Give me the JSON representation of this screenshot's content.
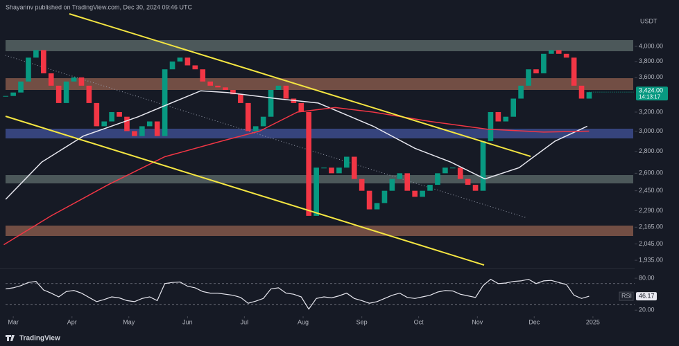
{
  "chart_data": {
    "type": "candlestick",
    "title": "Shayannv published on TradingView.com, Dec 30, 2024 09:46 UTC",
    "currency": "USDT",
    "brand": "TradingView",
    "x": [
      -4,
      0,
      4,
      8,
      12,
      16,
      20,
      24,
      28,
      32,
      36,
      40,
      44,
      48,
      52,
      56,
      60,
      64,
      68,
      72,
      76,
      80,
      84,
      88,
      92,
      96,
      100,
      104,
      108,
      112,
      116,
      120,
      124,
      128,
      132,
      136,
      140,
      144,
      148,
      152,
      156,
      160,
      164,
      168,
      172,
      176,
      180,
      184,
      188,
      192,
      196,
      200,
      204,
      208,
      212,
      216,
      220,
      224,
      228,
      232,
      236,
      240,
      244,
      248,
      252,
      256,
      260,
      264,
      268,
      272,
      276,
      280,
      284,
      288,
      292,
      296,
      300,
      304
    ],
    "values": [
      3380,
      3420,
      3550,
      3850,
      3950,
      3650,
      3500,
      3300,
      3550,
      3600,
      3500,
      3300,
      3050,
      3100,
      3200,
      3150,
      3000,
      2950,
      3050,
      3100,
      2950,
      3700,
      3800,
      3850,
      3750,
      3700,
      3550,
      3500,
      3480,
      3450,
      3400,
      3300,
      3000,
      3050,
      3150,
      3450,
      3500,
      3350,
      3300,
      3200,
      2250,
      2650,
      2650,
      2600,
      2650,
      2750,
      2550,
      2450,
      2300,
      2350,
      2450,
      2550,
      2600,
      2450,
      2400,
      2450,
      2500,
      2600,
      2650,
      2650,
      2550,
      2500,
      2450,
      2900,
      3200,
      3100,
      3150,
      3350,
      3500,
      3700,
      3650,
      3900,
      3950,
      3900,
      3850,
      3500,
      3350,
      3424
    ],
    "up_color": "#089981",
    "down_color": "#f23645",
    "last_price_label": "3,424.00",
    "timer": "14:13:17",
    "log": true,
    "ylim": [
      1895,
      4467
    ],
    "yticks": [
      {
        "value": 4000,
        "label": "4,000.00"
      },
      {
        "value": 3800,
        "label": "3,800.00"
      },
      {
        "value": 3600,
        "label": "3,600.00"
      },
      {
        "value": 3200,
        "label": "3,200.00"
      },
      {
        "value": 3000,
        "label": "3,000.00"
      },
      {
        "value": 2800,
        "label": "2,800.00"
      },
      {
        "value": 2600,
        "label": "2,600.00"
      },
      {
        "value": 2450,
        "label": "2,450.00"
      },
      {
        "value": 2290,
        "label": "2,290.00"
      },
      {
        "value": 2165,
        "label": "2,165.00"
      },
      {
        "value": 2045,
        "label": "2,045.00"
      },
      {
        "value": 1935,
        "label": "1,935.00"
      }
    ],
    "xlim": [
      -7,
      328
    ],
    "xticks": [
      {
        "value": 0,
        "label": "Mar"
      },
      {
        "value": 31,
        "label": "Apr"
      },
      {
        "value": 61,
        "label": "May"
      },
      {
        "value": 92,
        "label": "Jun"
      },
      {
        "value": 122,
        "label": "Jul"
      },
      {
        "value": 153,
        "label": "Aug"
      },
      {
        "value": 184,
        "label": "Sep"
      },
      {
        "value": 214,
        "label": "Oct"
      },
      {
        "value": 245,
        "label": "Nov"
      },
      {
        "value": 275,
        "label": "Dec"
      },
      {
        "value": 306,
        "label": "2025"
      }
    ],
    "lines": [
      {
        "color": "#e8e8f0",
        "x": [
          -4,
          15,
          37,
          66,
          81,
          99,
          113,
          139,
          161,
          190,
          212,
          231,
          249,
          267,
          286,
          303
        ],
        "values": [
          2380,
          2700,
          2950,
          3150,
          3280,
          3440,
          3420,
          3350,
          3300,
          3050,
          2830,
          2700,
          2550,
          2650,
          2900,
          3050
        ]
      },
      {
        "color": "#f23645",
        "x": [
          -5,
          20,
          50,
          80,
          110,
          130,
          150,
          170,
          190,
          220,
          250,
          280,
          304
        ],
        "values": [
          2040,
          2250,
          2500,
          2750,
          2900,
          3000,
          3200,
          3250,
          3200,
          3100,
          3020,
          2990,
          3000
        ]
      }
    ],
    "rsi": {
      "label": "RSI",
      "color": "#e8e8f0",
      "values": [
        60,
        62,
        66,
        72,
        74,
        58,
        52,
        45,
        55,
        57,
        52,
        44,
        36,
        40,
        45,
        43,
        38,
        36,
        42,
        45,
        38,
        70,
        72,
        73,
        65,
        62,
        55,
        52,
        52,
        50,
        48,
        44,
        33,
        37,
        42,
        60,
        62,
        52,
        50,
        45,
        22,
        42,
        45,
        43,
        47,
        52,
        42,
        38,
        33,
        36,
        42,
        48,
        52,
        44,
        42,
        45,
        48,
        54,
        57,
        56,
        50,
        47,
        44,
        66,
        78,
        70,
        71,
        74,
        75,
        78,
        70,
        75,
        76,
        72,
        68,
        48,
        42,
        46.17
      ],
      "ylim": [
        11.2,
        95.7
      ],
      "yticks": [
        {
          "value": 80,
          "label": "80.00"
        },
        {
          "value": 20,
          "label": "20.00"
        }
      ],
      "levels": [
        70,
        30
      ]
    }
  }
}
